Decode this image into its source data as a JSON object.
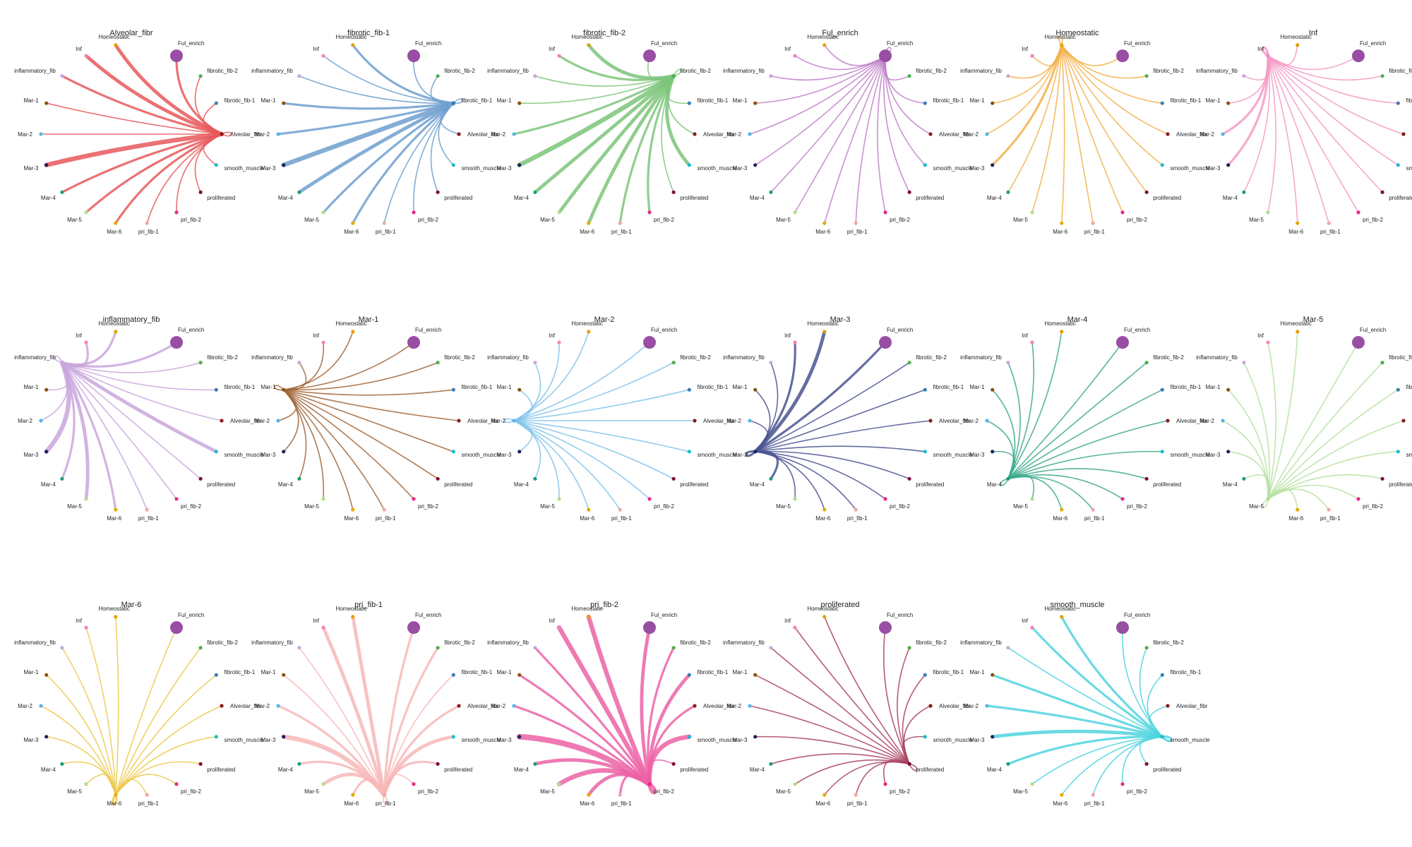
{
  "nodes": [
    {
      "name": "Ful_enrich",
      "color": "#984ea3",
      "size": 4.0
    },
    {
      "name": "fibrotic_fib-2",
      "color": "#4daf4a",
      "size": 1
    },
    {
      "name": "fibrotic_fib-1",
      "color": "#377eb8",
      "size": 1
    },
    {
      "name": "Alveolar_fibr",
      "color": "#8b1a1a",
      "size": 1
    },
    {
      "name": "smooth_muscle",
      "color": "#17becf",
      "size": 1
    },
    {
      "name": "proliferated",
      "color": "#7f0a3b",
      "size": 1
    },
    {
      "name": "pri_fib-2",
      "color": "#e7298a",
      "size": 1
    },
    {
      "name": "pri_fib-1",
      "color": "#f4a6a6",
      "size": 1
    },
    {
      "name": "Mar-6",
      "color": "#e6ab02",
      "size": 1
    },
    {
      "name": "Mar-5",
      "color": "#b2df8a",
      "size": 1
    },
    {
      "name": "Mar-4",
      "color": "#1b9e77",
      "size": 1
    },
    {
      "name": "Mar-3",
      "color": "#1f1f5c",
      "size": 1
    },
    {
      "name": "Mar-2",
      "color": "#56b4e9",
      "size": 1
    },
    {
      "name": "Mar-1",
      "color": "#8c510a",
      "size": 1
    },
    {
      "name": "inflammatory_fib",
      "color": "#c9a6dc",
      "size": 1
    },
    {
      "name": "Inf",
      "color": "#f781bf",
      "size": 1
    },
    {
      "name": "Homeostatic",
      "color": "#e69f00",
      "size": 1
    }
  ],
  "panels": [
    {
      "title": "Alveolar_fibr",
      "source": "Alveolar_fibr",
      "color": "#e8585a",
      "weights": [
        2,
        1,
        1,
        1,
        1,
        1,
        1,
        1,
        2,
        2,
        2,
        4,
        1,
        1,
        2,
        3,
        3
      ]
    },
    {
      "title": "fibrotic_fib-1",
      "source": "fibrotic_fib-1",
      "color": "#6e9fcf",
      "weights": [
        1,
        1,
        1,
        1,
        1,
        1,
        1,
        1,
        2,
        2,
        3,
        4,
        2,
        2,
        1,
        1,
        2
      ]
    },
    {
      "title": "fibrotic_fib-2",
      "source": "fibrotic_fib-2",
      "color": "#7cc47a",
      "weights": [
        1,
        1,
        1,
        1,
        3,
        1,
        2,
        2,
        3,
        3,
        3,
        4,
        2,
        1,
        1,
        2,
        3
      ]
    },
    {
      "title": "Ful_enrich",
      "source": "Ful_enrich",
      "color": "#c17fca",
      "weights": [
        1,
        1,
        1,
        1,
        1,
        1,
        1,
        1,
        1,
        1,
        1,
        1,
        1,
        1,
        1,
        1,
        1
      ]
    },
    {
      "title": "Homeostatic",
      "source": "Homeostatic",
      "color": "#f2b24a",
      "weights": [
        1,
        1,
        1,
        1,
        1,
        1,
        1,
        1,
        1,
        1,
        1,
        2,
        1,
        1,
        1,
        1,
        1
      ]
    },
    {
      "title": "Inf",
      "source": "Inf",
      "color": "#f49ac6",
      "weights": [
        1,
        1,
        1,
        1,
        1,
        1,
        1,
        1,
        1,
        1,
        1,
        2,
        2,
        1,
        1,
        2,
        1
      ]
    },
    {
      "title": "inflammatory_fib",
      "source": "inflammatory_fib",
      "color": "#c9a6dc",
      "weights": [
        2,
        1,
        1,
        1,
        3,
        1,
        1,
        1,
        2,
        3,
        2,
        4,
        1,
        1,
        1,
        2,
        2
      ]
    },
    {
      "title": "Mar-1",
      "source": "Mar-1",
      "color": "#a0653a",
      "weights": [
        1,
        1,
        1,
        1,
        1,
        1,
        1,
        1,
        1,
        1,
        1,
        1,
        1,
        1,
        1,
        1,
        1
      ]
    },
    {
      "title": "Mar-2",
      "source": "Mar-2",
      "color": "#7fc3ea",
      "weights": [
        1,
        1,
        1,
        1,
        1,
        1,
        1,
        1,
        1,
        1,
        1,
        1,
        1,
        1,
        1,
        1,
        1
      ]
    },
    {
      "title": "Mar-3",
      "source": "Mar-3",
      "color": "#4a5390",
      "weights": [
        2,
        1,
        1,
        1,
        1,
        1,
        1,
        1,
        1,
        1,
        2,
        2,
        1,
        1,
        1,
        2,
        3
      ]
    },
    {
      "title": "Mar-4",
      "source": "Mar-4",
      "color": "#3aa98a",
      "weights": [
        1,
        1,
        1,
        1,
        1,
        1,
        1,
        1,
        1,
        1,
        1,
        1,
        1,
        1,
        1,
        1,
        1
      ]
    },
    {
      "title": "Mar-5",
      "source": "Mar-5",
      "color": "#b6e0a0",
      "weights": [
        1,
        1,
        1,
        1,
        1,
        1,
        1,
        1,
        1,
        1,
        1,
        1,
        1,
        1,
        1,
        1,
        1
      ]
    },
    {
      "title": "Mar-6",
      "source": "Mar-6",
      "color": "#ecc94b",
      "weights": [
        1,
        1,
        1,
        1,
        1,
        1,
        1,
        1,
        2,
        1,
        1,
        1,
        1,
        1,
        1,
        1,
        1
      ]
    },
    {
      "title": "pri_fib-1",
      "source": "pri_fib-1",
      "color": "#f7b7b7",
      "weights": [
        2,
        2,
        1,
        2,
        3,
        2,
        1,
        1,
        2,
        3,
        2,
        4,
        2,
        1,
        1,
        3,
        3
      ]
    },
    {
      "title": "pri_fib-2",
      "source": "pri_fib-2",
      "color": "#ec62a6",
      "weights": [
        3,
        2,
        3,
        2,
        4,
        1,
        3,
        2,
        3,
        4,
        3,
        5,
        2,
        2,
        2,
        4,
        4
      ]
    },
    {
      "title": "proliferated",
      "source": "proliferated",
      "color": "#a8415f",
      "weights": [
        1,
        1,
        1,
        1,
        1,
        1,
        1,
        1,
        1,
        1,
        1,
        1,
        1,
        1,
        1,
        1,
        1
      ]
    },
    {
      "title": "smooth_muscle",
      "source": "smooth_muscle",
      "color": "#4fd3df",
      "weights": [
        1,
        1,
        1,
        1,
        2,
        1,
        1,
        1,
        1,
        1,
        2,
        3,
        2,
        2,
        1,
        2,
        2
      ]
    }
  ]
}
